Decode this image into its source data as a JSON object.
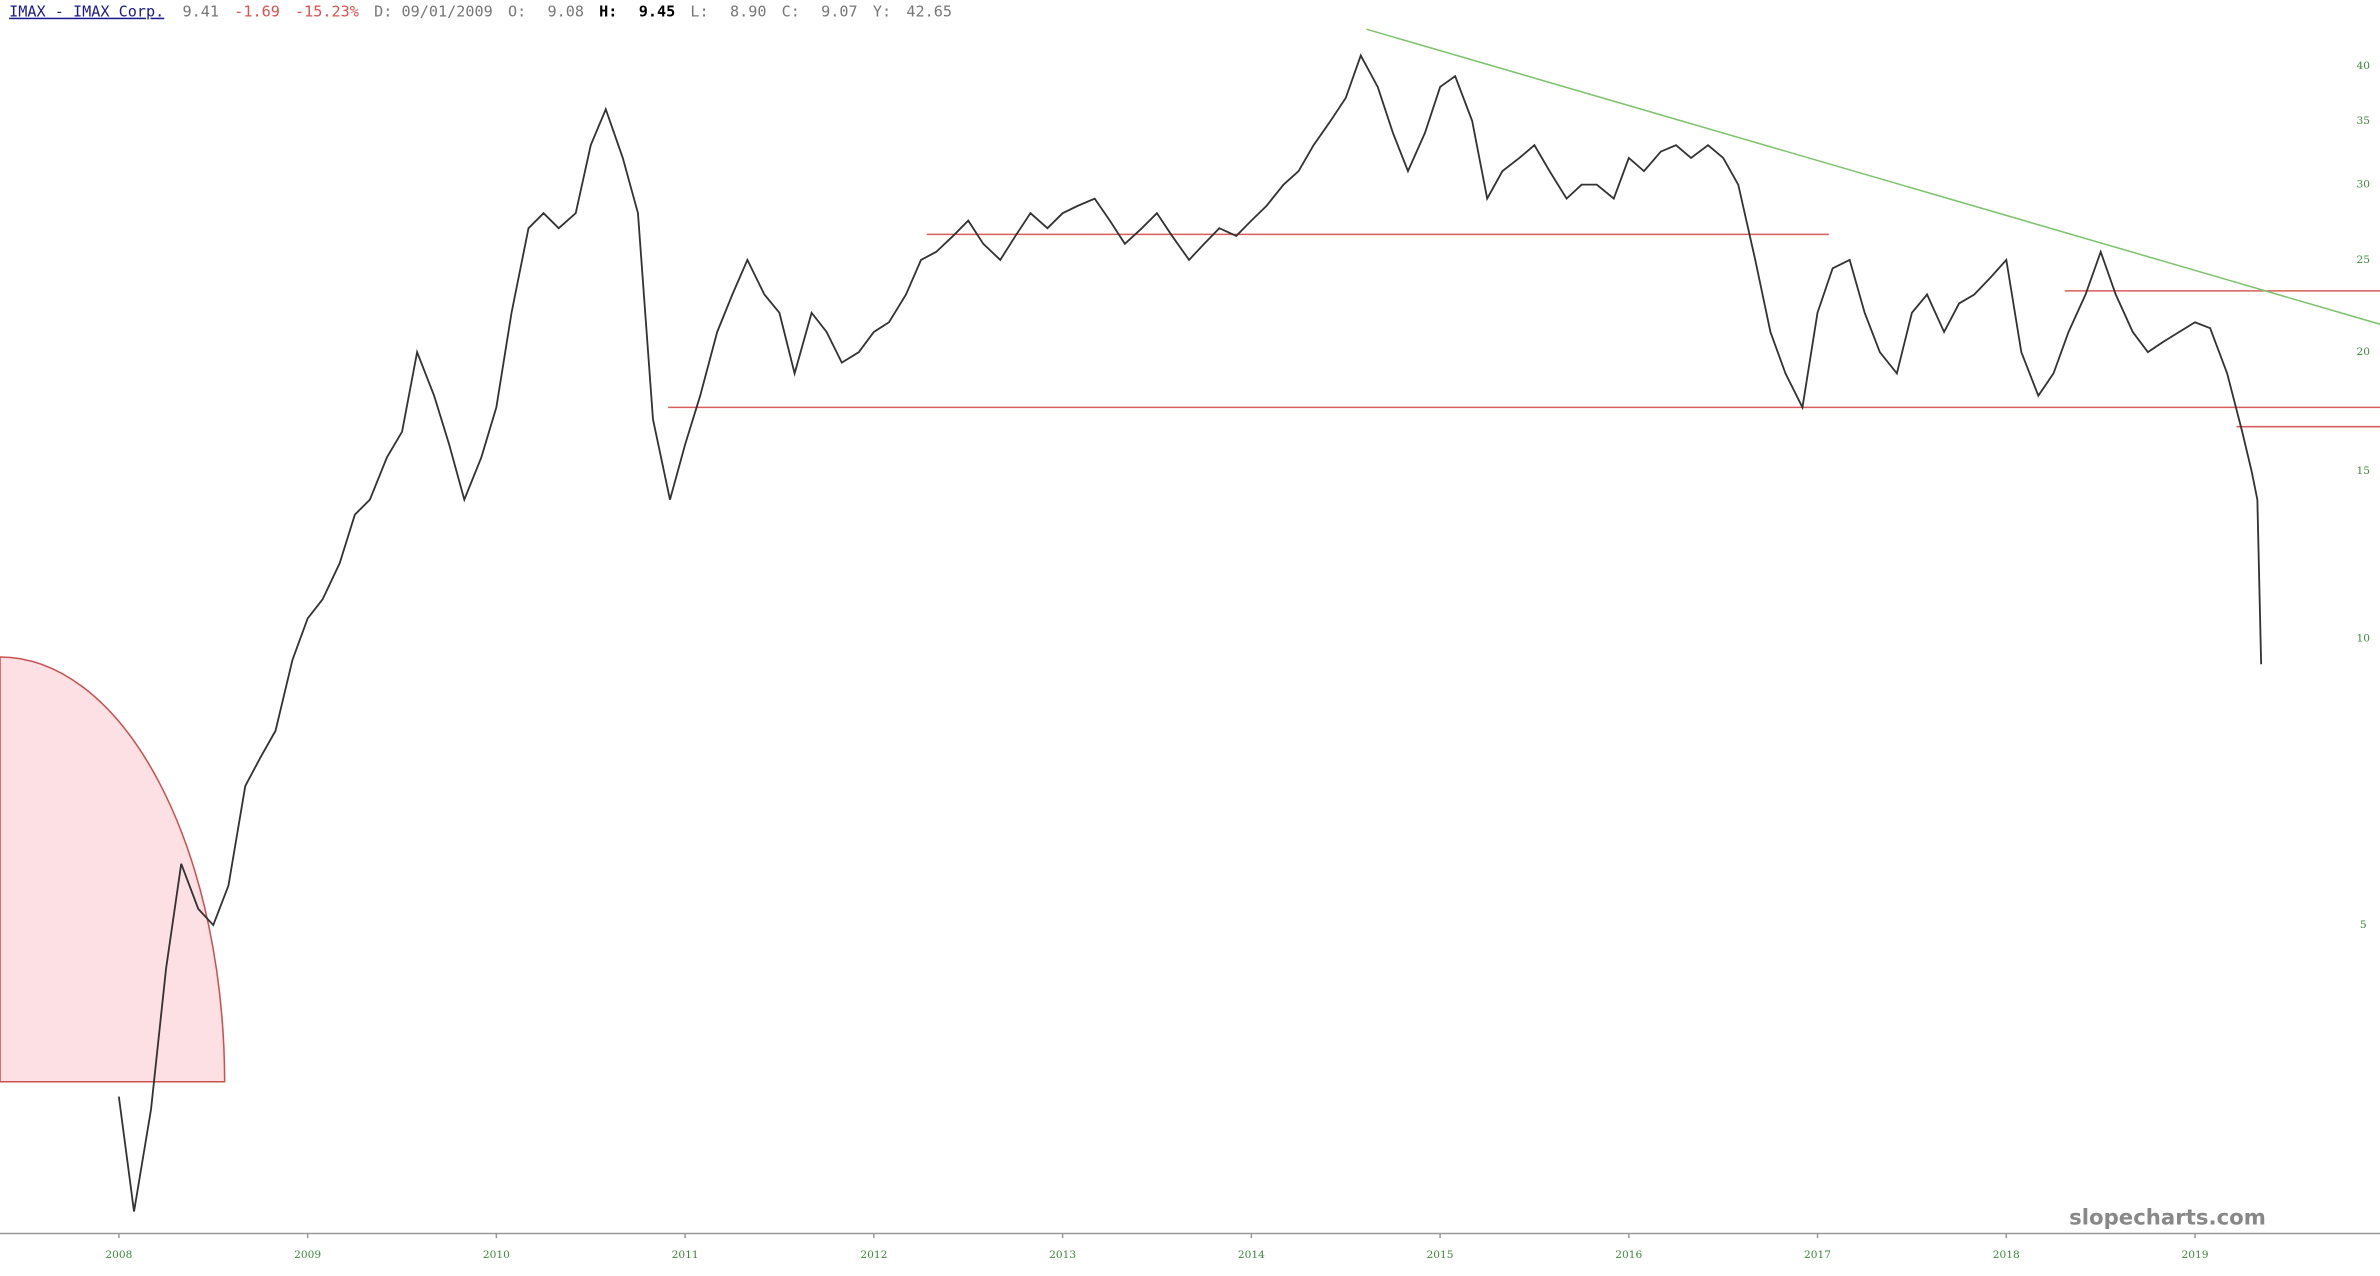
{
  "header": {
    "symbol": "IMAX - IMAX Corp.",
    "last": "9.41",
    "change": "-1.69",
    "change_pct": "-15.23%",
    "date": "D: 09/01/2009",
    "open_label": "O:",
    "open": "9.08",
    "high_label": "H:",
    "high": "9.45",
    "low_label": "L:",
    "low": "8.90",
    "close_label": "C:",
    "close": "9.07",
    "y_label": "Y:",
    "y_value": "42.65"
  },
  "chart_data": {
    "type": "line",
    "color": "#333333",
    "log_scale": true,
    "x": [
      2008.0,
      2008.08,
      2008.17,
      2008.25,
      2008.33,
      2008.42,
      2008.5,
      2008.58,
      2008.67,
      2008.75,
      2008.83,
      2008.92,
      2009.0,
      2009.08,
      2009.17,
      2009.25,
      2009.33,
      2009.42,
      2009.5,
      2009.58,
      2009.67,
      2009.75,
      2009.83,
      2009.92,
      2010.0,
      2010.08,
      2010.17,
      2010.25,
      2010.33,
      2010.42,
      2010.5,
      2010.58,
      2010.67,
      2010.75,
      2010.83,
      2010.92,
      2011.0,
      2011.08,
      2011.17,
      2011.25,
      2011.33,
      2011.42,
      2011.5,
      2011.58,
      2011.67,
      2011.75,
      2011.83,
      2011.92,
      2012.0,
      2012.08,
      2012.17,
      2012.25,
      2012.33,
      2012.42,
      2012.5,
      2012.58,
      2012.67,
      2012.75,
      2012.83,
      2012.92,
      2013.0,
      2013.08,
      2013.17,
      2013.25,
      2013.33,
      2013.42,
      2013.5,
      2013.58,
      2013.67,
      2013.75,
      2013.83,
      2013.92,
      2014.0,
      2014.08,
      2014.17,
      2014.25,
      2014.33,
      2014.42,
      2014.5,
      2014.58,
      2014.67,
      2014.75,
      2014.83,
      2014.92,
      2015.0,
      2015.08,
      2015.17,
      2015.25,
      2015.33,
      2015.42,
      2015.5,
      2015.58,
      2015.67,
      2015.75,
      2015.83,
      2015.92,
      2016.0,
      2016.08,
      2016.17,
      2016.25,
      2016.33,
      2016.42,
      2016.5,
      2016.58,
      2016.67,
      2016.75,
      2016.83,
      2016.92,
      2017.0,
      2017.08,
      2017.17,
      2017.25,
      2017.33,
      2017.42,
      2017.5,
      2017.58,
      2017.67,
      2017.75,
      2017.83,
      2017.92,
      2018.0,
      2018.08,
      2018.17,
      2018.25,
      2018.33,
      2018.42,
      2018.5,
      2018.58,
      2018.67,
      2018.75,
      2018.83,
      2019.0,
      2019.08,
      2019.17,
      2019.25,
      2019.3,
      2019.33,
      2019.35
    ],
    "values": [
      3.3,
      2.5,
      3.2,
      4.5,
      5.8,
      5.2,
      5.0,
      5.5,
      7.0,
      7.5,
      8.0,
      9.5,
      10.5,
      11,
      12,
      13.5,
      14,
      15.5,
      16.5,
      20,
      18,
      16,
      14,
      15.5,
      17.5,
      22,
      27,
      28,
      27,
      28,
      33,
      36,
      32,
      28,
      17,
      14,
      16,
      18,
      21,
      23,
      25,
      23,
      22,
      19,
      22,
      21,
      19.5,
      20,
      21,
      21.5,
      23,
      25,
      25.5,
      26.5,
      27.5,
      26,
      25,
      26.5,
      28,
      27,
      28,
      28.5,
      29,
      27.5,
      26,
      27,
      28,
      26.5,
      25,
      26,
      27,
      26.5,
      27.5,
      28.5,
      30,
      31,
      33,
      35,
      37,
      41,
      38,
      34,
      31,
      34,
      38,
      39,
      35,
      29,
      31,
      32,
      33,
      31,
      29,
      30,
      30,
      29,
      32,
      31,
      32.5,
      33,
      32,
      33,
      32,
      30,
      25,
      21,
      19,
      17.5,
      22,
      24.5,
      25,
      22,
      20,
      19,
      22,
      23,
      21,
      22.5,
      23,
      24,
      25,
      20,
      18,
      19,
      21,
      23,
      25.5,
      23,
      21,
      20,
      20.5,
      21.5,
      21.2,
      19,
      16.5,
      15,
      14,
      9.4
    ],
    "xlim": [
      2007.37,
      2019.98
    ],
    "xticks": [
      2008,
      2009,
      2010,
      2011,
      2012,
      2013,
      2014,
      2015,
      2016,
      2017,
      2018,
      2019
    ],
    "ylim": [
      2.37,
      46.9
    ],
    "yticks": [
      5,
      10,
      15,
      20,
      25,
      30,
      35,
      40
    ],
    "ref_lines": [
      {
        "color": "#d95c5c",
        "x": [
          2012.28,
          2017.06
        ],
        "y": [
          26.6,
          26.6
        ]
      },
      {
        "color": "#d95c5c",
        "x": [
          2010.91,
          2019.98
        ],
        "y": [
          17.5,
          17.5
        ]
      },
      {
        "color": "#d95c5c",
        "x": [
          2018.31,
          2019.98
        ],
        "y": [
          23.2,
          23.2
        ]
      },
      {
        "color": "#d95c5c",
        "x": [
          2019.22,
          2019.98
        ],
        "y": [
          16.7,
          16.7
        ]
      },
      {
        "color": "#7cc46a",
        "x": [
          2014.61,
          2019.98
        ],
        "y": [
          43.7,
          21.4
        ]
      }
    ],
    "watermark": "slopecharts.com"
  }
}
